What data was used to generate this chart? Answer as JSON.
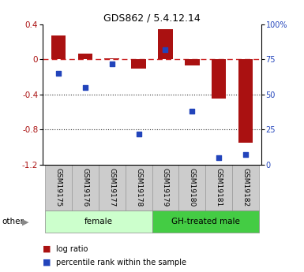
{
  "title": "GDS862 / 5.4.12.14",
  "samples": [
    "GSM19175",
    "GSM19176",
    "GSM19177",
    "GSM19178",
    "GSM19179",
    "GSM19180",
    "GSM19181",
    "GSM19182"
  ],
  "log_ratio": [
    0.27,
    0.07,
    0.01,
    -0.1,
    0.35,
    -0.07,
    -0.45,
    -0.95
  ],
  "percentile_rank": [
    65,
    55,
    72,
    22,
    82,
    38,
    5,
    7
  ],
  "ylim_left": [
    -1.2,
    0.4
  ],
  "ylim_right": [
    0,
    100
  ],
  "yticks_left": [
    -1.2,
    -0.8,
    -0.4,
    0.0,
    0.4
  ],
  "ytick_left_labels": [
    "-1.2",
    "-0.8",
    "-0.4",
    "0",
    "0.4"
  ],
  "yticks_right": [
    0,
    25,
    50,
    75,
    100
  ],
  "ytick_right_labels": [
    "0",
    "25",
    "50",
    "75",
    "100%"
  ],
  "groups": [
    {
      "label": "female",
      "start": 0,
      "end": 4,
      "color": "#ccffcc"
    },
    {
      "label": "GH-treated male",
      "start": 4,
      "end": 8,
      "color": "#44cc44"
    }
  ],
  "bar_color": "#aa1111",
  "scatter_color": "#2244bb",
  "dashed_line_color": "#cc2222",
  "dotted_line_color": "#333333",
  "cell_color": "#cccccc",
  "cell_border_color": "#999999",
  "bar_width": 0.55,
  "other_label": "other",
  "legend_items": [
    {
      "label": "log ratio",
      "color": "#aa1111"
    },
    {
      "label": "percentile rank within the sample",
      "color": "#2244bb"
    }
  ]
}
